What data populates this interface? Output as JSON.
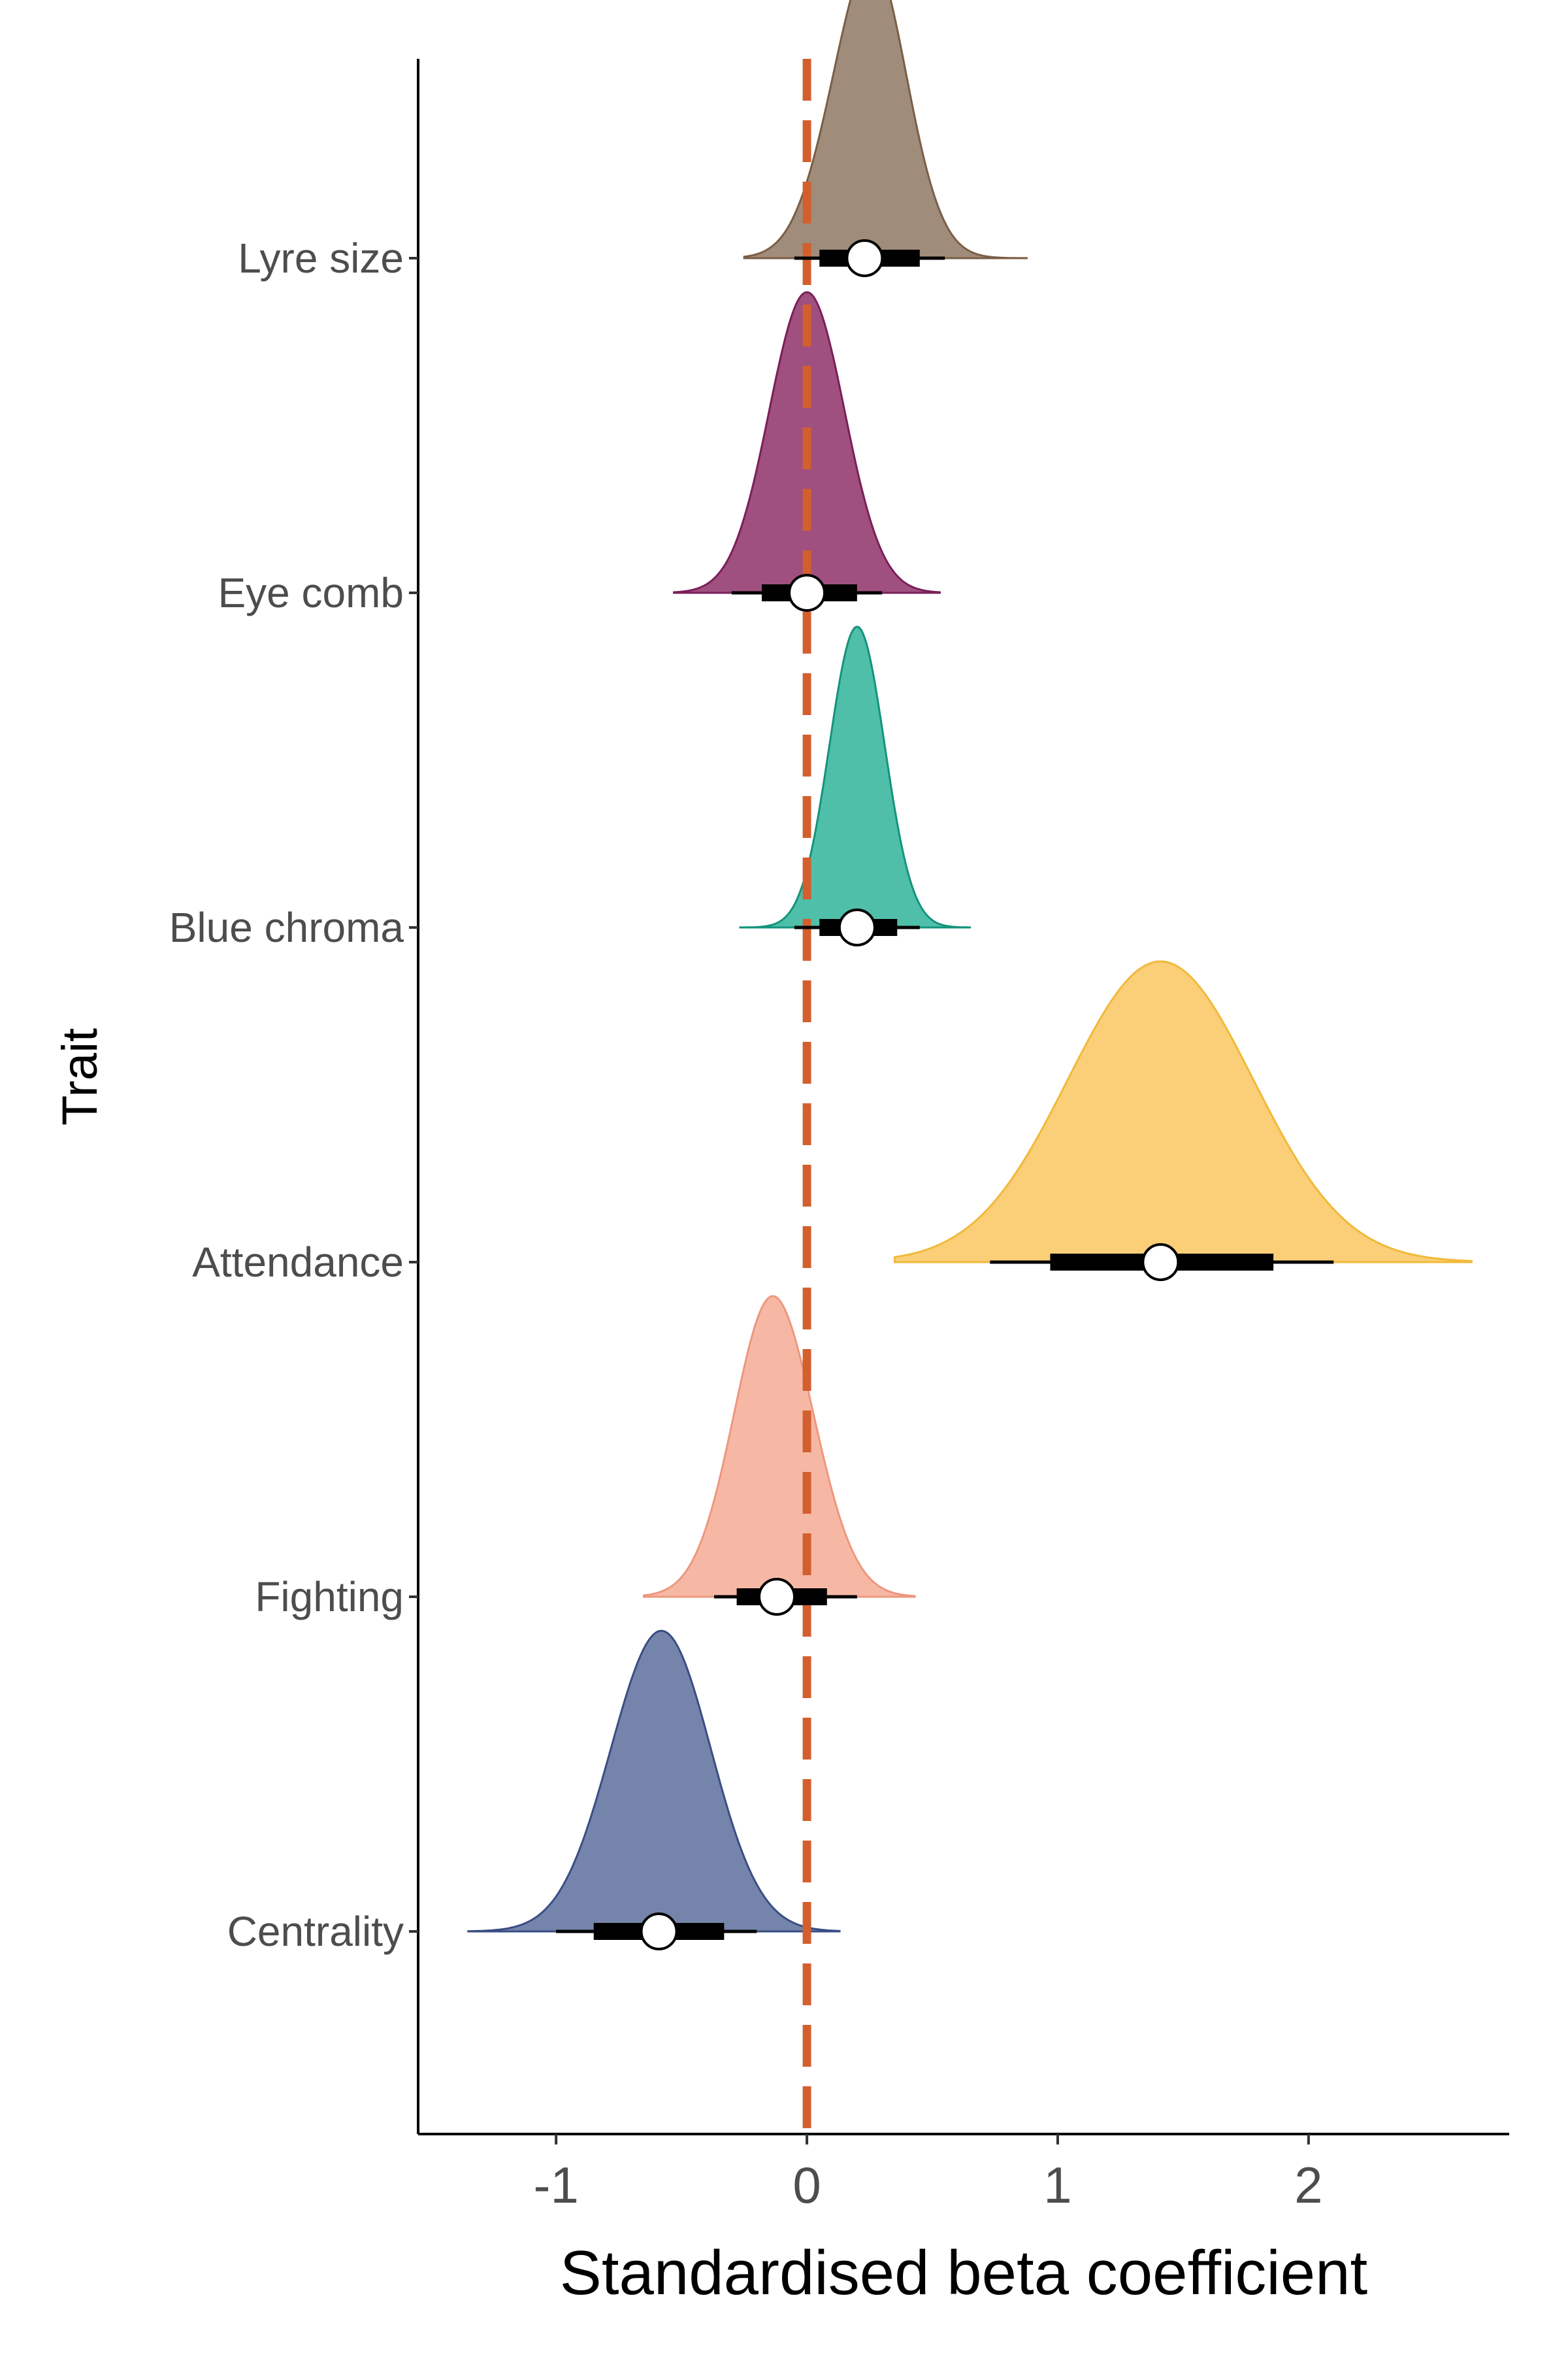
{
  "chart_data": {
    "type": "halfeye",
    "title": "",
    "xlabel": "Standardised beta coefficient",
    "ylabel": "Trait",
    "xlim": [
      -1.55,
      2.8
    ],
    "xticks": [
      -1,
      0,
      1,
      2
    ],
    "xtick_labels": [
      "-1",
      "0",
      "1",
      "2"
    ],
    "grid": false,
    "reference_line": {
      "x": 0,
      "style": "dashed",
      "color": "#D35F2E"
    },
    "series": [
      {
        "trait": "Lyre size",
        "color": "#A08C7A",
        "stroke": "#7B5E45",
        "mean": 0.23,
        "sd": 0.15,
        "skew": 0.18,
        "interval_66": [
          0.05,
          0.45
        ],
        "interval_95": [
          -0.05,
          0.55
        ],
        "range": [
          -0.25,
          0.88
        ]
      },
      {
        "trait": "Eye comb",
        "color": "#A0507E",
        "stroke": "#7A1F5A",
        "mean": 0.0,
        "sd": 0.15,
        "skew": 0.0,
        "interval_66": [
          -0.18,
          0.2
        ],
        "interval_95": [
          -0.3,
          0.3
        ],
        "range": [
          -0.53,
          0.53
        ]
      },
      {
        "trait": "Blue chroma",
        "color": "#4FBFA9",
        "stroke": "#14937C",
        "mean": 0.2,
        "sd": 0.11,
        "skew": 0.0,
        "interval_66": [
          0.05,
          0.36
        ],
        "interval_95": [
          -0.05,
          0.45
        ],
        "range": [
          -0.27,
          0.65
        ]
      },
      {
        "trait": "Attendance",
        "color": "#FBCE78",
        "stroke": "#F1B93A",
        "mean": 1.41,
        "sd": 0.37,
        "skew": 0.0,
        "interval_66": [
          0.97,
          1.86
        ],
        "interval_95": [
          0.73,
          2.1
        ],
        "range": [
          0.35,
          2.65
        ]
      },
      {
        "trait": "Fighting",
        "color": "#F6B8A5",
        "stroke": "#EE977E",
        "mean": -0.12,
        "sd": 0.16,
        "skew": -0.1,
        "interval_66": [
          -0.28,
          0.08
        ],
        "interval_95": [
          -0.37,
          0.2
        ],
        "range": [
          -0.65,
          0.43
        ]
      },
      {
        "trait": "Centrality",
        "color": "#7584AA",
        "stroke": "#3A4E84",
        "mean": -0.59,
        "sd": 0.2,
        "skew": 0.05,
        "interval_66": [
          -0.85,
          -0.33
        ],
        "interval_95": [
          -1.0,
          -0.2
        ],
        "range": [
          -1.35,
          0.13
        ]
      }
    ]
  }
}
